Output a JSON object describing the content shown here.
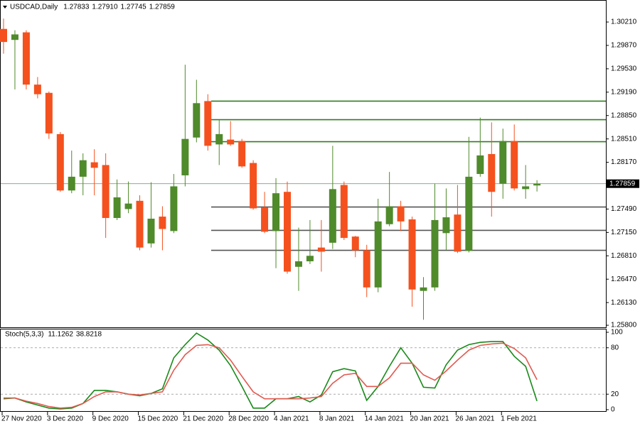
{
  "chart_data": [
    {
      "type": "candlestick",
      "title": "USDCAD,Daily",
      "header_labels": [
        "1.27833",
        "1.27910",
        "1.27745",
        "1.27859"
      ],
      "categories": [
        "27 Nov 2020",
        null,
        null,
        null,
        "3 Dec 2020",
        null,
        null,
        null,
        "9 Dec 2020",
        null,
        null,
        null,
        "15 Dec 2020",
        null,
        null,
        null,
        "21 Dec 2020",
        null,
        null,
        null,
        "28 Dec 2020",
        null,
        null,
        null,
        "4 Jan 2021",
        null,
        null,
        null,
        "8 Jan 2021",
        null,
        null,
        null,
        "14 Jan 2021",
        null,
        null,
        null,
        "20 Jan 2021",
        null,
        null,
        null,
        "26 Jan 2021",
        null,
        null,
        null,
        "1 Feb 2021",
        null,
        null,
        null
      ],
      "open": [
        1.3011,
        1.2995,
        1.3006,
        1.293,
        1.2918,
        1.2858,
        1.2776,
        1.2796,
        1.2817,
        1.2813,
        1.2736,
        1.2749,
        1.2761,
        1.2699,
        1.2738,
        1.2717,
        1.2798,
        1.2853,
        1.2906,
        1.2843,
        1.285,
        1.2848,
        1.2816,
        1.2751,
        1.2717,
        1.2774,
        1.2665,
        1.2673,
        1.2693,
        1.27,
        1.2784,
        1.2709,
        1.2689,
        1.2635,
        1.2727,
        1.2753,
        1.2734,
        1.263,
        1.2635,
        1.2714,
        1.2741,
        1.2688,
        1.28,
        1.2829,
        1.2786,
        1.2848,
        1.2778,
        1.27833
      ],
      "high": [
        1.3026,
        1.3009,
        1.3009,
        1.2941,
        1.292,
        1.2861,
        1.2834,
        1.283,
        1.2836,
        1.283,
        1.2792,
        1.2789,
        1.2769,
        1.2788,
        1.2753,
        1.28,
        1.2959,
        1.2937,
        1.2916,
        1.2879,
        1.2877,
        1.2851,
        1.282,
        1.2774,
        1.2794,
        1.2789,
        1.2722,
        1.2733,
        1.2733,
        1.2841,
        1.2789,
        1.271,
        1.2697,
        1.2764,
        1.2803,
        1.2761,
        1.2738,
        1.265,
        1.2786,
        1.2779,
        1.2784,
        1.2854,
        1.2882,
        1.2875,
        1.2866,
        1.2872,
        1.2813,
        1.2791
      ],
      "low": [
        1.2975,
        1.2923,
        1.2923,
        1.291,
        1.2851,
        1.2774,
        1.2772,
        1.2769,
        1.2769,
        1.2707,
        1.2733,
        1.2743,
        1.2689,
        1.2693,
        1.2689,
        1.2714,
        1.2782,
        1.2846,
        1.2834,
        1.2813,
        1.2841,
        1.2809,
        1.2748,
        1.2714,
        1.2663,
        1.2655,
        1.263,
        1.2669,
        1.2658,
        1.2691,
        1.2704,
        1.2679,
        1.2621,
        1.2628,
        1.2724,
        1.2717,
        1.2607,
        1.2588,
        1.263,
        1.2689,
        1.2685,
        1.2686,
        1.2796,
        1.2738,
        1.2764,
        1.2776,
        1.2764,
        1.27745
      ],
      "close": [
        1.2992,
        1.3003,
        1.293,
        1.2916,
        1.2859,
        1.2776,
        1.2796,
        1.282,
        1.2809,
        1.2736,
        1.2766,
        1.2757,
        1.2693,
        1.2735,
        1.272,
        1.2782,
        1.2851,
        1.2903,
        1.2841,
        1.2858,
        1.2843,
        1.2811,
        1.275,
        1.2716,
        1.2772,
        1.2658,
        1.2673,
        1.2681,
        1.2687,
        1.2778,
        1.2707,
        1.2689,
        1.2635,
        1.2731,
        1.2753,
        1.2731,
        1.2632,
        1.2635,
        1.2733,
        1.2737,
        1.2687,
        1.2796,
        1.2827,
        1.2774,
        1.2848,
        1.2779,
        1.2782,
        1.27859
      ],
      "up_color": "#4f8a2b",
      "down_color": "#f4511e",
      "ylim": [
        1.2577,
        1.3052
      ],
      "yticks": [
        {
          "value": 1.3021,
          "label": "1.30210"
        },
        {
          "value": 1.2987,
          "label": "1.29870"
        },
        {
          "value": 1.2953,
          "label": "1.29530"
        },
        {
          "value": 1.2919,
          "label": "1.29190"
        },
        {
          "value": 1.2885,
          "label": "1.28850"
        },
        {
          "value": 1.2851,
          "label": "1.28510"
        },
        {
          "value": 1.2817,
          "label": "1.28170"
        },
        {
          "value": 1.2749,
          "label": "1.27490"
        },
        {
          "value": 1.2715,
          "label": "1.27150"
        },
        {
          "value": 1.2681,
          "label": "1.26810"
        },
        {
          "value": 1.2647,
          "label": "1.26470"
        },
        {
          "value": 1.2613,
          "label": "1.26130"
        },
        {
          "value": 1.258,
          "label": "1.25800"
        }
      ],
      "levels": [
        {
          "value": 1.2906,
          "color": "#2f7d1e"
        },
        {
          "value": 1.2879,
          "color": "#2f7d1e"
        },
        {
          "value": 1.2847,
          "color": "#2f7d1e"
        },
        {
          "value": 1.2752,
          "color": "#555555"
        },
        {
          "value": 1.2718,
          "color": "#555555"
        },
        {
          "value": 1.2689,
          "color": "#555555"
        }
      ],
      "last_price": {
        "value": 1.27859,
        "label": "1.27859"
      }
    },
    {
      "type": "line",
      "title": "Stoch(5,3,3)",
      "header_labels": [
        "11.1262",
        "38.8218"
      ],
      "series": [
        {
          "color": "#1a8a1a",
          "values": [
            14,
            15,
            10,
            6,
            2,
            1,
            2,
            8,
            25,
            25,
            23,
            20,
            18,
            21,
            27,
            67,
            84,
            99,
            90,
            77,
            57,
            30,
            2,
            2,
            14,
            14,
            17,
            10,
            19,
            49,
            53,
            50,
            12,
            30,
            56,
            80,
            60,
            29,
            28,
            58,
            77,
            84,
            87,
            88,
            88,
            69,
            56,
            11.1262
          ]
        },
        {
          "color": "#e05a50",
          "values": [
            15,
            15,
            11,
            8,
            4,
            2,
            3,
            8,
            17,
            23,
            23,
            20,
            19,
            21,
            23,
            51,
            71,
            83,
            84,
            80,
            64,
            43,
            23,
            14,
            14,
            14,
            14,
            15,
            17,
            34,
            45,
            47,
            30,
            30,
            41,
            60,
            60,
            45,
            38,
            50,
            64,
            77,
            83,
            85,
            86,
            79,
            67,
            38.8218
          ]
        }
      ],
      "ylim": [
        0,
        100
      ],
      "yticks": [
        0,
        20,
        80,
        100
      ],
      "levels": [
        20,
        80
      ]
    }
  ]
}
